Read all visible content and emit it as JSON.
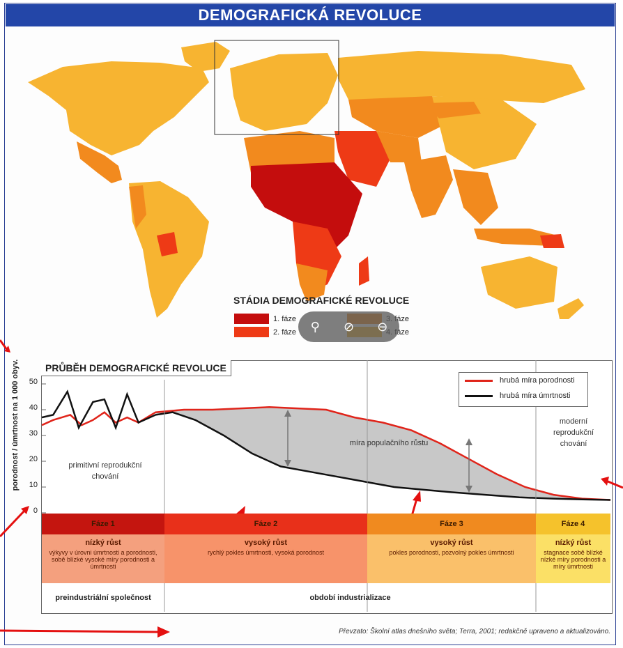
{
  "page": {
    "title": "DEMOGRAFICKÁ REVOLUCE"
  },
  "map_legend": {
    "title": "STÁDIA DEMOGRAFICKÉ REVOLUCE",
    "items": [
      {
        "label": "1. fáze",
        "color": "#c40d0d"
      },
      {
        "label": "2. fáze",
        "color": "#ee3a16"
      },
      {
        "label": "3. fáze",
        "color": "#f28a1e"
      },
      {
        "label": "4. fáze",
        "color": "#f7b431"
      }
    ]
  },
  "overlay": {
    "icons": [
      "pin-icon",
      "mute-icon",
      "minus-circle-icon"
    ]
  },
  "chart": {
    "title": "PRŮBĚH DEMOGRAFICKÉ REVOLUCE",
    "ylabel": "porodnost / úmrtnost na 1 000 obyv.",
    "ytick_labels": [
      "0",
      "10",
      "20",
      "30",
      "40",
      "50"
    ],
    "legend": {
      "birth": "hrubá míra porodnosti",
      "death": "hrubá míra úmrtnosti"
    },
    "notes": {
      "primitive": "primitivní reprodukční chování",
      "growth": "míra populačního růstu",
      "modern": "moderní reprodukční chování"
    },
    "phases": [
      {
        "head": "Fáze 1",
        "growth": "nízký růst",
        "desc": "výkyvy v úrovni úmrtnosti a porodnosti, sobě blízké vysoké míry porodnosti a úmrtnosti"
      },
      {
        "head": "Fáze 2",
        "growth": "vysoký růst",
        "desc": "rychlý pokles úmrtnosti, vysoká porodnost"
      },
      {
        "head": "Fáze 3",
        "growth": "vysoký růst",
        "desc": "pokles porodnosti, pozvolný pokles úmrtnosti"
      },
      {
        "head": "Fáze 4",
        "growth": "nízký růst",
        "desc": "stagnace sobě blízké nízké míry porodnosti a míry úmrtnosti"
      }
    ],
    "eras": [
      "preindustriální společnost",
      "období industrializace"
    ],
    "colors": {
      "birth": "#e0241a",
      "death": "#111111",
      "gap": "#c8c8c8",
      "phase1": "#c4150f",
      "phase2": "#e8301a",
      "phase3": "#f08a1f",
      "phase4": "#f5c22c"
    }
  },
  "source": "Převzato: Školní atlas dnešního světa; Terra, 2001; redakčně upraveno a aktualizováno."
}
